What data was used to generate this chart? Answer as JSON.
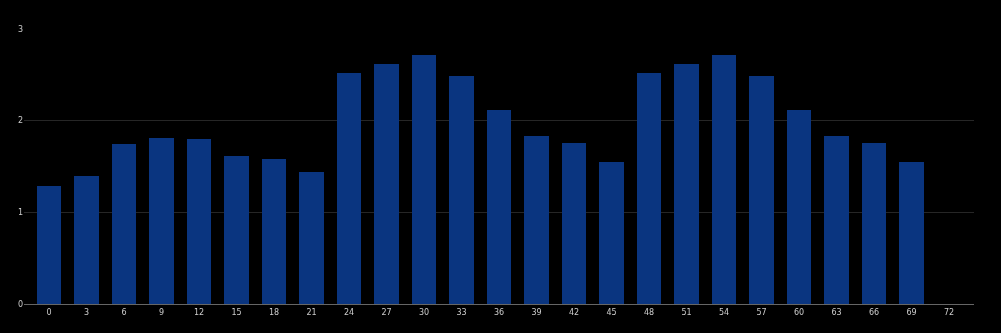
{
  "chart_data": {
    "type": "bar",
    "x": [
      0,
      3,
      6,
      9,
      12,
      15,
      18,
      21,
      24,
      27,
      30,
      33,
      36,
      39,
      42,
      45,
      48,
      51,
      54,
      57,
      60,
      63,
      66,
      69
    ],
    "values": [
      1.29,
      1.4,
      1.75,
      1.81,
      1.8,
      1.61,
      1.58,
      1.44,
      2.52,
      2.62,
      2.72,
      2.49,
      2.12,
      1.83,
      1.76,
      1.55,
      2.52,
      2.62,
      2.72,
      2.49,
      2.12,
      1.83,
      1.76,
      1.55
    ],
    "color": "#0a3580",
    "xlim": [
      -2,
      74
    ],
    "xticks": [
      0,
      3,
      6,
      9,
      12,
      15,
      18,
      21,
      24,
      27,
      30,
      33,
      36,
      39,
      42,
      45,
      48,
      51,
      54,
      57,
      60,
      63,
      66,
      69,
      72
    ],
    "ylim": [
      0,
      3
    ],
    "yticks": [
      0,
      1,
      2,
      3
    ],
    "grid": "y",
    "legend": false
  }
}
